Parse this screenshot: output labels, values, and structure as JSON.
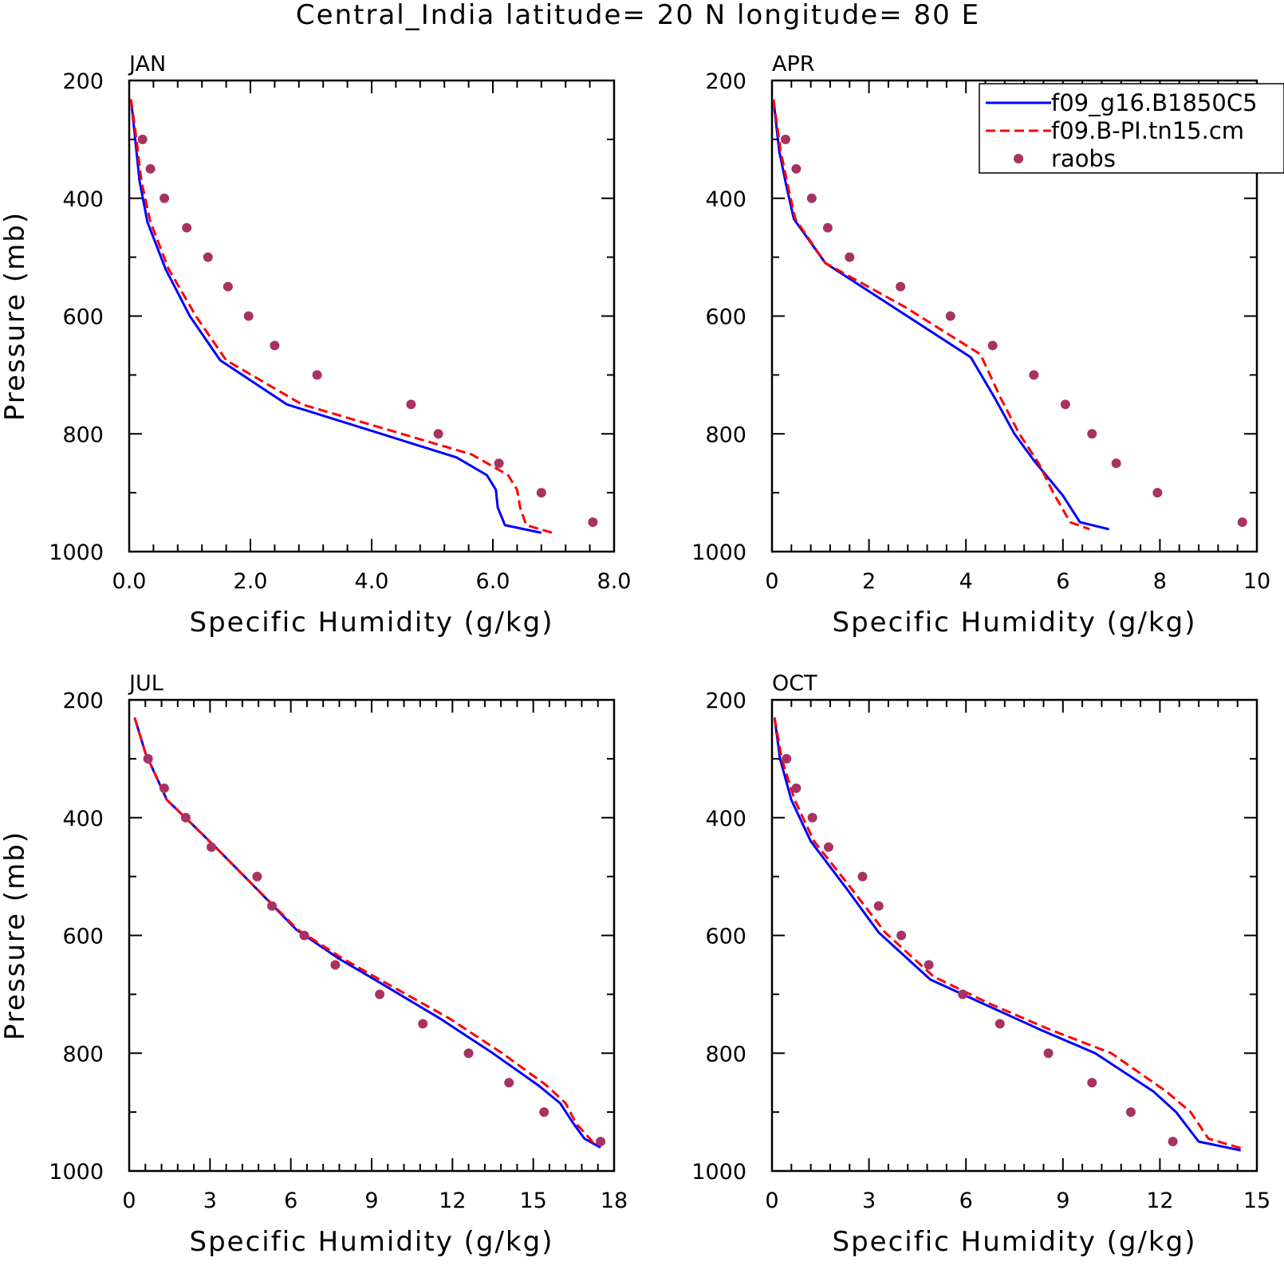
{
  "chart_data": {
    "title": "Central_India  latitude= 20 N longitude= 80 E",
    "legend": {
      "placement": "top-right",
      "entries": [
        {
          "series": "model1",
          "label": "f09_g16.B1850C5"
        },
        {
          "series": "model2",
          "label": "f09.B-PI.tn15.cm"
        },
        {
          "series": "raobs",
          "label": "raobs"
        }
      ]
    },
    "styles": {
      "model1": {
        "color": "#0000ff",
        "dash": "solid",
        "type": "line"
      },
      "model2": {
        "color": "#ff0000",
        "dash": "dashed",
        "type": "line"
      },
      "raobs": {
        "color": "#a83262",
        "type": "scatter"
      }
    },
    "panels": [
      {
        "type": "line",
        "label": "JAN",
        "xlabel": "Specific Humidity (g/kg)",
        "ylabel": "Pressure (mb)",
        "xlim": [
          0,
          8
        ],
        "ylim": [
          1000,
          200
        ],
        "xticks": [
          0,
          2,
          4,
          6,
          8
        ],
        "xtick_labels": [
          "0.0",
          "2.0",
          "4.0",
          "6.0",
          "8.0"
        ],
        "yticks": [
          200,
          400,
          600,
          800,
          1000
        ],
        "ytick_labels": [
          "200",
          "400",
          "600",
          "800",
          "1000"
        ],
        "grid": false,
        "series": [
          {
            "key": "model1",
            "x": [
              0.03,
              0.1,
              0.17,
              0.3,
              0.6,
              1.0,
              1.5,
              2.6,
              5.4,
              5.9,
              6.05,
              6.08,
              6.2,
              6.8
            ],
            "y": [
              232,
              300,
              370,
              440,
              520,
              600,
              675,
              750,
              840,
              870,
              895,
              925,
              955,
              968
            ]
          },
          {
            "key": "model2",
            "x": [
              0.03,
              0.12,
              0.2,
              0.35,
              0.65,
              1.1,
              1.6,
              2.85,
              5.65,
              6.25,
              6.4,
              6.45,
              6.55,
              6.98
            ],
            "y": [
              232,
              300,
              370,
              440,
              520,
              600,
              675,
              750,
              835,
              870,
              895,
              925,
              955,
              968
            ]
          },
          {
            "key": "raobs",
            "x": [
              0.22,
              0.35,
              0.58,
              0.95,
              1.3,
              1.63,
              1.97,
              2.4,
              3.1,
              4.65,
              5.1,
              6.1,
              6.8,
              7.65
            ],
            "y": [
              300,
              350,
              400,
              450,
              500,
              550,
              600,
              650,
              700,
              750,
              800,
              850,
              900,
              950
            ]
          }
        ]
      },
      {
        "type": "line",
        "label": "APR",
        "xlabel": "Specific Humidity (g/kg)",
        "ylabel": "",
        "xlim": [
          0,
          10
        ],
        "ylim": [
          1000,
          200
        ],
        "xticks": [
          0,
          2,
          4,
          6,
          8,
          10
        ],
        "xtick_labels": [
          "0",
          "2",
          "4",
          "6",
          "8",
          "10"
        ],
        "yticks": [
          200,
          400,
          600,
          800,
          1000
        ],
        "ytick_labels": [
          "200",
          "400",
          "600",
          "800",
          "1000"
        ],
        "grid": false,
        "series": [
          {
            "key": "model1",
            "x": [
              0.03,
              0.15,
              0.3,
              0.45,
              1.1,
              2.6,
              4.1,
              4.6,
              5.0,
              5.4,
              6.0,
              6.35,
              6.95
            ],
            "y": [
              232,
              320,
              380,
              435,
              510,
              590,
              670,
              740,
              800,
              845,
              905,
              950,
              962
            ]
          },
          {
            "key": "model2",
            "x": [
              0.03,
              0.18,
              0.33,
              0.48,
              1.1,
              2.75,
              4.3,
              4.72,
              5.1,
              5.5,
              5.8,
              6.15,
              6.55
            ],
            "y": [
              232,
              320,
              380,
              435,
              510,
              585,
              665,
              740,
              800,
              850,
              900,
              950,
              962
            ]
          },
          {
            "key": "raobs",
            "x": [
              0.28,
              0.5,
              0.82,
              1.15,
              1.6,
              2.65,
              3.68,
              4.55,
              5.4,
              6.05,
              6.6,
              7.1,
              7.95,
              9.7
            ],
            "y": [
              300,
              350,
              400,
              450,
              500,
              550,
              600,
              650,
              700,
              750,
              800,
              850,
              900,
              950
            ]
          }
        ]
      },
      {
        "type": "line",
        "label": "JUL",
        "xlabel": "Specific Humidity (g/kg)",
        "ylabel": "Pressure (mb)",
        "xlim": [
          0,
          18
        ],
        "ylim": [
          1000,
          200
        ],
        "xticks": [
          0,
          3,
          6,
          9,
          12,
          15,
          18
        ],
        "xtick_labels": [
          "0",
          "3",
          "6",
          "9",
          "12",
          "15",
          "18"
        ],
        "yticks": [
          200,
          400,
          600,
          800,
          1000
        ],
        "ytick_labels": [
          "200",
          "400",
          "600",
          "800",
          "1000"
        ],
        "grid": false,
        "series": [
          {
            "key": "model1",
            "x": [
              0.2,
              0.6,
              1.4,
              2.2,
              3.2,
              4.5,
              6.2,
              7.8,
              9.3,
              11.5,
              13.5,
              15.2,
              16.0,
              16.5,
              16.9,
              17.5
            ],
            "y": [
              230,
              290,
              370,
              405,
              450,
              510,
              590,
              640,
              680,
              740,
              800,
              855,
              885,
              920,
              945,
              960
            ]
          },
          {
            "key": "model2",
            "x": [
              0.2,
              0.6,
              1.4,
              2.2,
              3.2,
              4.5,
              6.25,
              7.95,
              9.5,
              11.85,
              13.85,
              15.5,
              16.2,
              16.6,
              17.1,
              17.3
            ],
            "y": [
              230,
              290,
              370,
              405,
              450,
              510,
              590,
              640,
              680,
              740,
              800,
              855,
              885,
              920,
              945,
              957
            ]
          },
          {
            "key": "raobs",
            "x": [
              0.7,
              1.3,
              2.1,
              3.05,
              4.75,
              5.3,
              6.5,
              7.65,
              9.3,
              10.9,
              12.6,
              14.1,
              15.4,
              17.5
            ],
            "y": [
              300,
              350,
              400,
              450,
              500,
              550,
              600,
              650,
              700,
              750,
              800,
              850,
              900,
              950
            ]
          }
        ]
      },
      {
        "type": "line",
        "label": "OCT",
        "xlabel": "Specific Humidity (g/kg)",
        "ylabel": "",
        "xlim": [
          0,
          15
        ],
        "ylim": [
          1000,
          200
        ],
        "xticks": [
          0,
          3,
          6,
          9,
          12,
          15
        ],
        "xtick_labels": [
          "0",
          "3",
          "6",
          "9",
          "12",
          "15"
        ],
        "yticks": [
          200,
          400,
          600,
          800,
          1000
        ],
        "ytick_labels": [
          "200",
          "400",
          "600",
          "800",
          "1000"
        ],
        "grid": false,
        "series": [
          {
            "key": "model1",
            "x": [
              0.08,
              0.25,
              0.6,
              1.2,
              2.3,
              3.3,
              4.9,
              6.5,
              8.3,
              10.0,
              11.8,
              12.5,
              13.2,
              14.5
            ],
            "y": [
              230,
              300,
              370,
              440,
              520,
              595,
              675,
              715,
              760,
              800,
              865,
              900,
              950,
              965
            ]
          },
          {
            "key": "model2",
            "x": [
              0.08,
              0.3,
              0.7,
              1.3,
              2.45,
              3.5,
              5.0,
              6.7,
              8.6,
              10.5,
              12.2,
              12.95,
              13.5,
              14.55
            ],
            "y": [
              230,
              300,
              370,
              440,
              520,
              595,
              670,
              715,
              760,
              800,
              865,
              900,
              945,
              962
            ]
          },
          {
            "key": "raobs",
            "x": [
              0.45,
              0.75,
              1.25,
              1.75,
              2.8,
              3.3,
              4.0,
              4.85,
              5.9,
              7.05,
              8.55,
              9.9,
              11.1,
              12.4
            ],
            "y": [
              300,
              350,
              400,
              450,
              500,
              550,
              600,
              650,
              700,
              750,
              800,
              850,
              900,
              950
            ]
          }
        ]
      }
    ]
  }
}
